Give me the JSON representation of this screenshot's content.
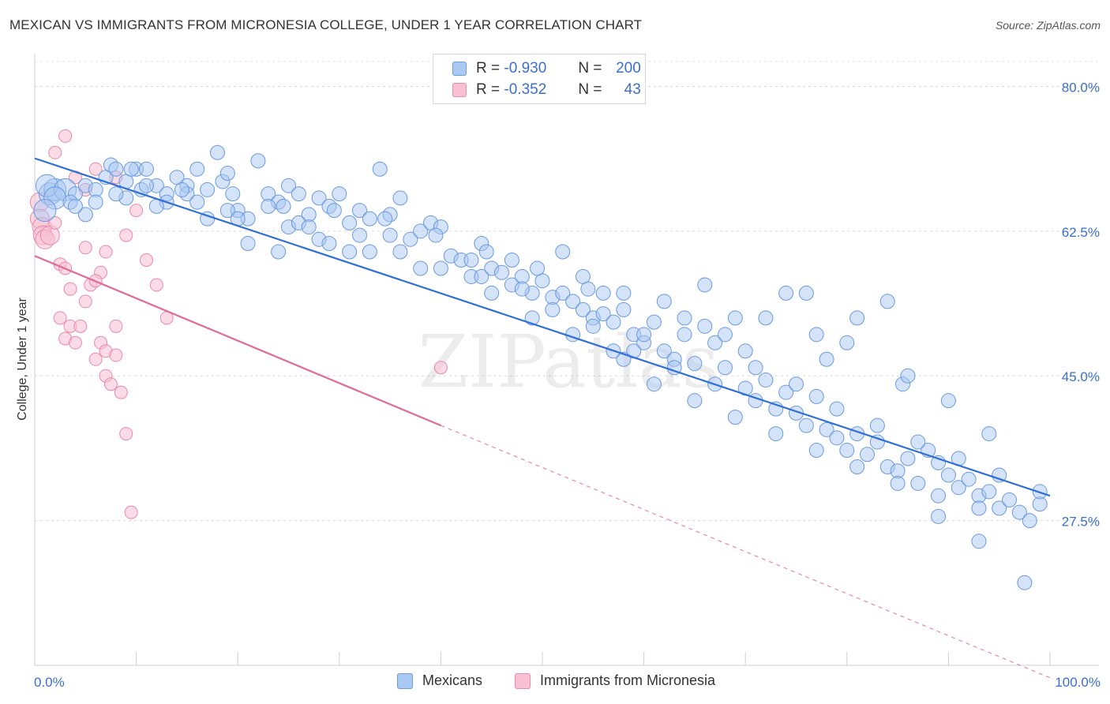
{
  "title": "MEXICAN VS IMMIGRANTS FROM MICRONESIA COLLEGE, UNDER 1 YEAR CORRELATION CHART",
  "source": "Source: ZipAtlas.com",
  "legend": {
    "rows": [
      {
        "r_label": "R =",
        "r_value": "-0.930",
        "n_label": "N =",
        "n_value": "200",
        "color": "#a9c8f2",
        "border": "#6a9ae0"
      },
      {
        "r_label": "R =",
        "r_value": "-0.352",
        "n_label": "N =",
        "n_value": "43",
        "color": "#f8c0d2",
        "border": "#e88aa8"
      }
    ]
  },
  "bottom_legend": [
    {
      "label": "Mexicans",
      "color": "#a9c8f2",
      "border": "#6a9ae0"
    },
    {
      "label": "Immigrants from Micronesia",
      "color": "#f8c0d2",
      "border": "#e88aa8"
    }
  ],
  "watermark": "ZIPatlas",
  "chart_data": {
    "type": "scatter",
    "title": "MEXICAN VS IMMIGRANTS FROM MICRONESIA COLLEGE, UNDER 1 YEAR CORRELATION CHART",
    "xlabel": "",
    "ylabel": "College, Under 1 year",
    "xlim": [
      0,
      100
    ],
    "ylim": [
      10,
      83
    ],
    "x_tick_labels": [
      "0.0%",
      "100.0%"
    ],
    "y_ticks": [
      27.5,
      45.0,
      62.5,
      80.0
    ],
    "y_tick_labels": [
      "27.5%",
      "45.0%",
      "62.5%",
      "80.0%"
    ],
    "grid": true,
    "colors": {
      "blue": "#3a6fce",
      "blue_line": "#2f6fd6",
      "pink_line": "#e06a94"
    },
    "series": [
      {
        "name": "Mexicans",
        "R": -0.93,
        "N": 200,
        "trend": {
          "x0": 0,
          "y0": 71.3,
          "x1": 100,
          "y1": 30.5
        },
        "points": [
          [
            1.5,
            67
          ],
          [
            2,
            67.5
          ],
          [
            1.2,
            68
          ],
          [
            3,
            67.5
          ],
          [
            4,
            67
          ],
          [
            5,
            68
          ],
          [
            6,
            67.5
          ],
          [
            7,
            69
          ],
          [
            7.5,
            70.5
          ],
          [
            8,
            70
          ],
          [
            9,
            68.5
          ],
          [
            10,
            70
          ],
          [
            10.5,
            67.5
          ],
          [
            11,
            70
          ],
          [
            12,
            68
          ],
          [
            13,
            67
          ],
          [
            14,
            69
          ],
          [
            15,
            68
          ],
          [
            16,
            70
          ],
          [
            17,
            67.5
          ],
          [
            18,
            72
          ],
          [
            18.5,
            68.5
          ],
          [
            19,
            69.5
          ],
          [
            20,
            65
          ],
          [
            21,
            64
          ],
          [
            22,
            71
          ],
          [
            23,
            67
          ],
          [
            24,
            66
          ],
          [
            25,
            68
          ],
          [
            26,
            67
          ],
          [
            27,
            64.5
          ],
          [
            28,
            66.5
          ],
          [
            29,
            65.5
          ],
          [
            30,
            67
          ],
          [
            31,
            63.5
          ],
          [
            32,
            65
          ],
          [
            33,
            64
          ],
          [
            34,
            70
          ],
          [
            35,
            64.5
          ],
          [
            36,
            66.5
          ],
          [
            37,
            61.5
          ],
          [
            38,
            62.5
          ],
          [
            39,
            63.5
          ],
          [
            40,
            63
          ],
          [
            41,
            59.5
          ],
          [
            42,
            59
          ],
          [
            43,
            57
          ],
          [
            44,
            61
          ],
          [
            45,
            58
          ],
          [
            46,
            57.5
          ],
          [
            47,
            59
          ],
          [
            48,
            57
          ],
          [
            49,
            55
          ],
          [
            50,
            56.5
          ],
          [
            51,
            54.5
          ],
          [
            52,
            55
          ],
          [
            53,
            54
          ],
          [
            54,
            53
          ],
          [
            55,
            52
          ],
          [
            56,
            52.5
          ],
          [
            57,
            51.5
          ],
          [
            58,
            55
          ],
          [
            59,
            50
          ],
          [
            60,
            49
          ],
          [
            61,
            51.5
          ],
          [
            62,
            48
          ],
          [
            63,
            47
          ],
          [
            64,
            50
          ],
          [
            65,
            46.5
          ],
          [
            66,
            51
          ],
          [
            67,
            44
          ],
          [
            68,
            46
          ],
          [
            69,
            52
          ],
          [
            70,
            43.5
          ],
          [
            71,
            42
          ],
          [
            72,
            44.5
          ],
          [
            73,
            41
          ],
          [
            74,
            43
          ],
          [
            75,
            40.5
          ],
          [
            76,
            39
          ],
          [
            77,
            42.5
          ],
          [
            78,
            38.5
          ],
          [
            79,
            37.5
          ],
          [
            80,
            36
          ],
          [
            81,
            38
          ],
          [
            82,
            35.5
          ],
          [
            83,
            37
          ],
          [
            84,
            34
          ],
          [
            85,
            33.5
          ],
          [
            86,
            35
          ],
          [
            87,
            32
          ],
          [
            88,
            36
          ],
          [
            89,
            34.5
          ],
          [
            90,
            33
          ],
          [
            91,
            31.5
          ],
          [
            92,
            32.5
          ],
          [
            93,
            30.5
          ],
          [
            94,
            31
          ],
          [
            95,
            29
          ],
          [
            96,
            30
          ],
          [
            97,
            28.5
          ],
          [
            98,
            27.5
          ],
          [
            99,
            29.5
          ],
          [
            97.5,
            20
          ],
          [
            93,
            25
          ],
          [
            89,
            28
          ],
          [
            85.5,
            44
          ],
          [
            84,
            54
          ],
          [
            81,
            52
          ],
          [
            78,
            47
          ],
          [
            77,
            50
          ],
          [
            74,
            55
          ],
          [
            66,
            56
          ],
          [
            60,
            50
          ],
          [
            58,
            47
          ],
          [
            52,
            60
          ],
          [
            47,
            56
          ],
          [
            43,
            59
          ],
          [
            38,
            58
          ],
          [
            33,
            60
          ],
          [
            28,
            61.5
          ],
          [
            25,
            63
          ],
          [
            21,
            61
          ],
          [
            17,
            64
          ],
          [
            13,
            66
          ],
          [
            9,
            66.5
          ],
          [
            6,
            66
          ],
          [
            2,
            66.5
          ],
          [
            3.5,
            66
          ],
          [
            5,
            64.5
          ],
          [
            12,
            65.5
          ],
          [
            15,
            67
          ],
          [
            19,
            65
          ],
          [
            23,
            65.5
          ],
          [
            26,
            63.5
          ],
          [
            29,
            61
          ],
          [
            32,
            62
          ],
          [
            36,
            60
          ],
          [
            40,
            58
          ],
          [
            44,
            57
          ],
          [
            48,
            55.5
          ],
          [
            51,
            53
          ],
          [
            55,
            51
          ],
          [
            59,
            48
          ],
          [
            63,
            46
          ],
          [
            67,
            49
          ],
          [
            71,
            46
          ],
          [
            75,
            44
          ],
          [
            79,
            41
          ],
          [
            83,
            39
          ],
          [
            87,
            37
          ],
          [
            91,
            35
          ],
          [
            95,
            33
          ],
          [
            99,
            31
          ],
          [
            61,
            44
          ],
          [
            65,
            42
          ],
          [
            69,
            40
          ],
          [
            73,
            38
          ],
          [
            77,
            36
          ],
          [
            81,
            34
          ],
          [
            85,
            32
          ],
          [
            89,
            30.5
          ],
          [
            93,
            29
          ],
          [
            70,
            48
          ],
          [
            72,
            52
          ],
          [
            76,
            55
          ],
          [
            80,
            49
          ],
          [
            86,
            45
          ],
          [
            90,
            42
          ],
          [
            94,
            38
          ],
          [
            54,
            57
          ],
          [
            56,
            55
          ],
          [
            58,
            53
          ],
          [
            62,
            54
          ],
          [
            64,
            52
          ],
          [
            68,
            50
          ],
          [
            45,
            55
          ],
          [
            49,
            52
          ],
          [
            53,
            50
          ],
          [
            57,
            48
          ],
          [
            35,
            62
          ],
          [
            31,
            60
          ],
          [
            27,
            63
          ],
          [
            24,
            60
          ],
          [
            20,
            64
          ],
          [
            16,
            66
          ],
          [
            11,
            68
          ],
          [
            8,
            67
          ],
          [
            4,
            65.5
          ],
          [
            1,
            65
          ],
          [
            9.5,
            70
          ],
          [
            14.5,
            67.5
          ],
          [
            19.5,
            67
          ],
          [
            24.5,
            65.5
          ],
          [
            29.5,
            65
          ],
          [
            34.5,
            64
          ],
          [
            39.5,
            62
          ],
          [
            44.5,
            60
          ],
          [
            49.5,
            58
          ],
          [
            54.5,
            55.5
          ]
        ]
      },
      {
        "name": "Immigrants from Micronesia",
        "R": -0.352,
        "N": 43,
        "trend": {
          "x0": 0,
          "y0": 59.5,
          "x1": 40,
          "y1": 39.0,
          "x1_dash": 100,
          "y1_dash": 8.5
        },
        "points": [
          [
            0.5,
            66
          ],
          [
            0.5,
            64
          ],
          [
            0.7,
            63
          ],
          [
            0.8,
            62
          ],
          [
            1,
            61.5
          ],
          [
            1.5,
            62
          ],
          [
            2,
            63.5
          ],
          [
            2.5,
            58.5
          ],
          [
            3,
            58
          ],
          [
            3.5,
            55.5
          ],
          [
            3.5,
            51
          ],
          [
            2.5,
            52
          ],
          [
            3,
            49.5
          ],
          [
            4,
            49
          ],
          [
            4.5,
            51
          ],
          [
            5,
            54
          ],
          [
            5.5,
            56
          ],
          [
            6,
            47
          ],
          [
            6.5,
            49
          ],
          [
            7,
            45
          ],
          [
            7,
            48
          ],
          [
            7.5,
            44
          ],
          [
            8,
            47.5
          ],
          [
            8.5,
            43
          ],
          [
            9,
            38
          ],
          [
            9.5,
            28.5
          ],
          [
            3,
            74
          ],
          [
            2,
            72
          ],
          [
            4,
            69
          ],
          [
            5,
            67.5
          ],
          [
            6,
            70
          ],
          [
            8,
            69
          ],
          [
            9,
            62
          ],
          [
            10,
            65
          ],
          [
            11,
            59
          ],
          [
            12,
            56
          ],
          [
            13,
            52
          ],
          [
            7,
            60
          ],
          [
            6.5,
            57.5
          ],
          [
            6,
            56.5
          ],
          [
            40,
            46
          ],
          [
            8,
            51
          ],
          [
            5,
            60.5
          ]
        ]
      }
    ]
  }
}
